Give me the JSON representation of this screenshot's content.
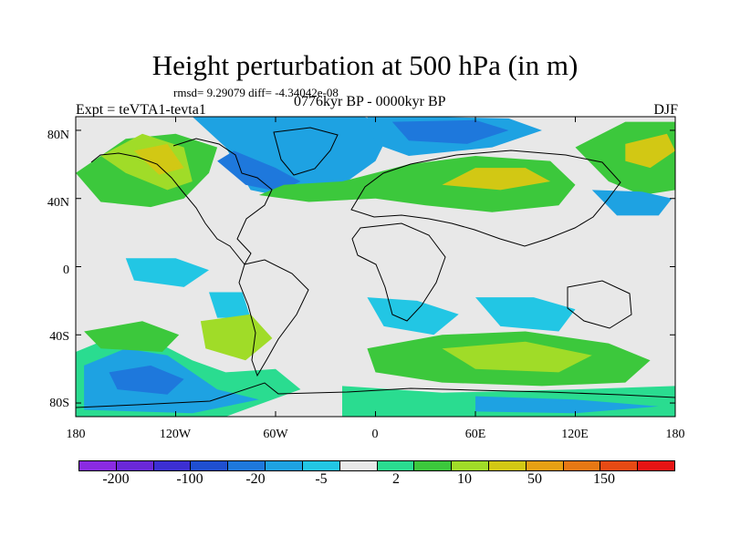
{
  "title": "Height perturbation at 500 hPa (in m)",
  "stats": "rmsd= 9.29079 diff= -4.34042e-08",
  "header": {
    "left": "Expt = teVTA1-tevta1",
    "center": "0776kyr BP - 0000kyr BP",
    "right": "DJF"
  },
  "axes": {
    "lat_labels": [
      "80N",
      "40N",
      "0",
      "40S",
      "80S"
    ],
    "lat_values": [
      80,
      40,
      0,
      -40,
      -80
    ],
    "lon_labels": [
      "180",
      "120W",
      "60W",
      "0",
      "60E",
      "120E",
      "180"
    ],
    "lon_values": [
      -180,
      -120,
      -60,
      0,
      60,
      120,
      180
    ]
  },
  "colorbar": {
    "colors": [
      "#8a2be2",
      "#6a28d8",
      "#3c2fd2",
      "#1f4fd0",
      "#1e78dc",
      "#1ea2e2",
      "#22c6e4",
      "#e8e8e8",
      "#2adc90",
      "#3cc83c",
      "#a0dc28",
      "#d2c814",
      "#e6a014",
      "#e67814",
      "#e64a14",
      "#e61414"
    ],
    "labels": [
      "-200",
      "-100",
      "-20",
      "-5",
      "2",
      "10",
      "50",
      "150"
    ]
  },
  "regions": [
    {
      "level": 9,
      "name": "north-america-west-positive",
      "pts": [
        [
          -180,
          55
        ],
        [
          -150,
          75
        ],
        [
          -120,
          78
        ],
        [
          -95,
          70
        ],
        [
          -100,
          55
        ],
        [
          -115,
          40
        ],
        [
          -135,
          35
        ],
        [
          -165,
          38
        ]
      ]
    },
    {
      "level": 10,
      "name": "alaska-core",
      "pts": [
        [
          -165,
          65
        ],
        [
          -140,
          78
        ],
        [
          -115,
          70
        ],
        [
          -110,
          50
        ],
        [
          -125,
          45
        ],
        [
          -150,
          55
        ]
      ]
    },
    {
      "level": 11,
      "name": "alaska-inner",
      "pts": [
        [
          -145,
          68
        ],
        [
          -125,
          72
        ],
        [
          -115,
          58
        ],
        [
          -130,
          54
        ]
      ]
    },
    {
      "level": 9,
      "name": "greenland-positive",
      "pts": [
        [
          -85,
          88
        ],
        [
          -20,
          88
        ],
        [
          -10,
          78
        ],
        [
          -25,
          65
        ],
        [
          -55,
          60
        ],
        [
          -80,
          72
        ]
      ]
    },
    {
      "level": 11,
      "name": "greenland-core",
      "pts": [
        [
          -65,
          82
        ],
        [
          -30,
          83
        ],
        [
          -22,
          72
        ],
        [
          -45,
          66
        ],
        [
          -62,
          72
        ]
      ]
    },
    {
      "level": 5,
      "name": "north-atlantic-negative",
      "pts": [
        [
          -110,
          88
        ],
        [
          -90,
          70
        ],
        [
          -75,
          45
        ],
        [
          -50,
          40
        ],
        [
          -20,
          48
        ],
        [
          0,
          62
        ],
        [
          10,
          82
        ],
        [
          -10,
          89
        ]
      ]
    },
    {
      "level": 4,
      "name": "north-atlantic-core",
      "pts": [
        [
          -95,
          62
        ],
        [
          -78,
          48
        ],
        [
          -58,
          44
        ],
        [
          -45,
          50
        ],
        [
          -60,
          58
        ],
        [
          -85,
          68
        ]
      ]
    },
    {
      "level": 5,
      "name": "siberia-negative",
      "pts": [
        [
          -5,
          88
        ],
        [
          30,
          88
        ],
        [
          80,
          87
        ],
        [
          100,
          80
        ],
        [
          70,
          70
        ],
        [
          20,
          65
        ],
        [
          0,
          72
        ]
      ]
    },
    {
      "level": 4,
      "name": "siberia-core",
      "pts": [
        [
          10,
          85
        ],
        [
          60,
          86
        ],
        [
          80,
          80
        ],
        [
          55,
          72
        ],
        [
          20,
          74
        ]
      ]
    },
    {
      "level": 9,
      "name": "mediterranean-positive",
      "pts": [
        [
          -70,
          42
        ],
        [
          -40,
          38
        ],
        [
          0,
          40
        ],
        [
          30,
          36
        ],
        [
          70,
          32
        ],
        [
          110,
          36
        ],
        [
          120,
          48
        ],
        [
          105,
          62
        ],
        [
          60,
          65
        ],
        [
          20,
          60
        ],
        [
          -20,
          50
        ],
        [
          -55,
          48
        ]
      ]
    },
    {
      "level": 11,
      "name": "central-asia-core",
      "pts": [
        [
          40,
          48
        ],
        [
          75,
          45
        ],
        [
          105,
          50
        ],
        [
          90,
          58
        ],
        [
          60,
          58
        ]
      ]
    },
    {
      "level": 9,
      "name": "north-pacific-positive",
      "pts": [
        [
          120,
          70
        ],
        [
          150,
          85
        ],
        [
          180,
          85
        ],
        [
          180,
          45
        ],
        [
          160,
          42
        ],
        [
          140,
          50
        ]
      ]
    },
    {
      "level": 11,
      "name": "kamchatka-core",
      "pts": [
        [
          150,
          72
        ],
        [
          175,
          78
        ],
        [
          180,
          68
        ],
        [
          165,
          58
        ],
        [
          150,
          62
        ]
      ]
    },
    {
      "level": 5,
      "name": "north-pacific-negative",
      "pts": [
        [
          130,
          45
        ],
        [
          160,
          44
        ],
        [
          178,
          40
        ],
        [
          170,
          30
        ],
        [
          145,
          30
        ]
      ]
    },
    {
      "level": 6,
      "name": "tropical-pacific-negative-a",
      "pts": [
        [
          -150,
          5
        ],
        [
          -120,
          5
        ],
        [
          -100,
          -2
        ],
        [
          -115,
          -12
        ],
        [
          -145,
          -8
        ]
      ]
    },
    {
      "level": 6,
      "name": "tropical-pacific-negative-b",
      "pts": [
        [
          -100,
          -15
        ],
        [
          -80,
          -15
        ],
        [
          -75,
          -30
        ],
        [
          -95,
          -30
        ]
      ]
    },
    {
      "level": 6,
      "name": "south-atlantic-negative",
      "pts": [
        [
          -5,
          -18
        ],
        [
          25,
          -20
        ],
        [
          50,
          -28
        ],
        [
          35,
          -40
        ],
        [
          5,
          -35
        ]
      ]
    },
    {
      "level": 6,
      "name": "south-indian-negative",
      "pts": [
        [
          60,
          -18
        ],
        [
          95,
          -18
        ],
        [
          120,
          -25
        ],
        [
          110,
          -38
        ],
        [
          75,
          -35
        ]
      ]
    },
    {
      "level": 8,
      "name": "south-pacific-edge",
      "pts": [
        [
          -180,
          -50
        ],
        [
          -150,
          -38
        ],
        [
          -130,
          -45
        ],
        [
          -110,
          -55
        ],
        [
          -90,
          -62
        ],
        [
          -60,
          -60
        ],
        [
          -45,
          -72
        ],
        [
          -90,
          -88
        ],
        [
          -180,
          -88
        ]
      ]
    },
    {
      "level": 5,
      "name": "south-pacific-negative",
      "pts": [
        [
          -175,
          -58
        ],
        [
          -150,
          -48
        ],
        [
          -125,
          -52
        ],
        [
          -110,
          -62
        ],
        [
          -95,
          -72
        ],
        [
          -70,
          -78
        ],
        [
          -110,
          -86
        ],
        [
          -175,
          -84
        ]
      ]
    },
    {
      "level": 4,
      "name": "south-pacific-core",
      "pts": [
        [
          -160,
          -62
        ],
        [
          -135,
          -58
        ],
        [
          -115,
          -66
        ],
        [
          -125,
          -75
        ],
        [
          -155,
          -72
        ]
      ]
    },
    {
      "level": 9,
      "name": "south-pacific-positive",
      "pts": [
        [
          -175,
          -38
        ],
        [
          -140,
          -32
        ],
        [
          -118,
          -40
        ],
        [
          -128,
          -50
        ],
        [
          -165,
          -48
        ]
      ]
    },
    {
      "level": 10,
      "name": "south-america-positive",
      "pts": [
        [
          -105,
          -32
        ],
        [
          -75,
          -28
        ],
        [
          -62,
          -42
        ],
        [
          -78,
          -55
        ],
        [
          -102,
          -48
        ]
      ]
    },
    {
      "level": 9,
      "name": "southern-ocean-positive",
      "pts": [
        [
          -5,
          -48
        ],
        [
          40,
          -40
        ],
        [
          90,
          -38
        ],
        [
          140,
          -45
        ],
        [
          165,
          -55
        ],
        [
          150,
          -68
        ],
        [
          100,
          -70
        ],
        [
          40,
          -68
        ],
        [
          0,
          -62
        ]
      ]
    },
    {
      "level": 10,
      "name": "southern-ocean-core",
      "pts": [
        [
          40,
          -48
        ],
        [
          90,
          -44
        ],
        [
          130,
          -52
        ],
        [
          110,
          -62
        ],
        [
          60,
          -60
        ]
      ]
    },
    {
      "level": 8,
      "name": "antarctic-positive",
      "pts": [
        [
          -20,
          -70
        ],
        [
          40,
          -74
        ],
        [
          120,
          -72
        ],
        [
          180,
          -70
        ],
        [
          180,
          -88
        ],
        [
          -20,
          -88
        ]
      ]
    },
    {
      "level": 5,
      "name": "antarctic-negative",
      "pts": [
        [
          60,
          -76
        ],
        [
          120,
          -78
        ],
        [
          170,
          -82
        ],
        [
          120,
          -86
        ],
        [
          60,
          -85
        ]
      ]
    }
  ]
}
